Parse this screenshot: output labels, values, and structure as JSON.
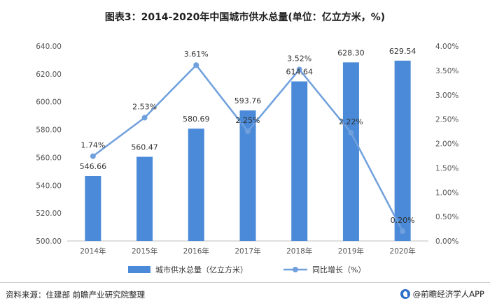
{
  "title": "图表3：2014-2020年中国城市供水总量(单位：亿立方米，%)",
  "source": "资料来源：住建部 前瞻产业研究院整理",
  "brand": "@前瞻经济学人APP",
  "chart_data": {
    "type": "bar+line",
    "categories": [
      "2014年",
      "2015年",
      "2016年",
      "2017年",
      "2018年",
      "2019年",
      "2020年"
    ],
    "series": [
      {
        "name": "城市供水总量（亿立方米）",
        "type": "bar",
        "axis": "left",
        "values": [
          546.66,
          560.47,
          580.69,
          593.76,
          614.64,
          628.3,
          629.54
        ],
        "labels": [
          "546.66",
          "560.47",
          "580.69",
          "593.76",
          "614.64",
          "628.30",
          "629.54"
        ],
        "color": "#4a8ad8"
      },
      {
        "name": "同比增长（%）",
        "type": "line",
        "axis": "right",
        "values": [
          1.74,
          2.53,
          3.61,
          2.25,
          3.52,
          2.22,
          0.2
        ],
        "labels": [
          "1.74%",
          "2.53%",
          "3.61%",
          "2.25%",
          "3.52%",
          "2.22%",
          "0.20%"
        ],
        "color": "#6fa0dd"
      }
    ],
    "y_left": {
      "range": [
        500,
        640
      ],
      "ticks": [
        "500.00",
        "520.00",
        "540.00",
        "560.00",
        "580.00",
        "600.00",
        "620.00",
        "640.00"
      ]
    },
    "y_right": {
      "range": [
        0,
        4
      ],
      "ticks": [
        "0.00%",
        "0.50%",
        "1.00%",
        "1.50%",
        "2.00%",
        "2.50%",
        "3.00%",
        "3.50%",
        "4.00%"
      ]
    },
    "grid": false,
    "legend_position": "bottom"
  }
}
